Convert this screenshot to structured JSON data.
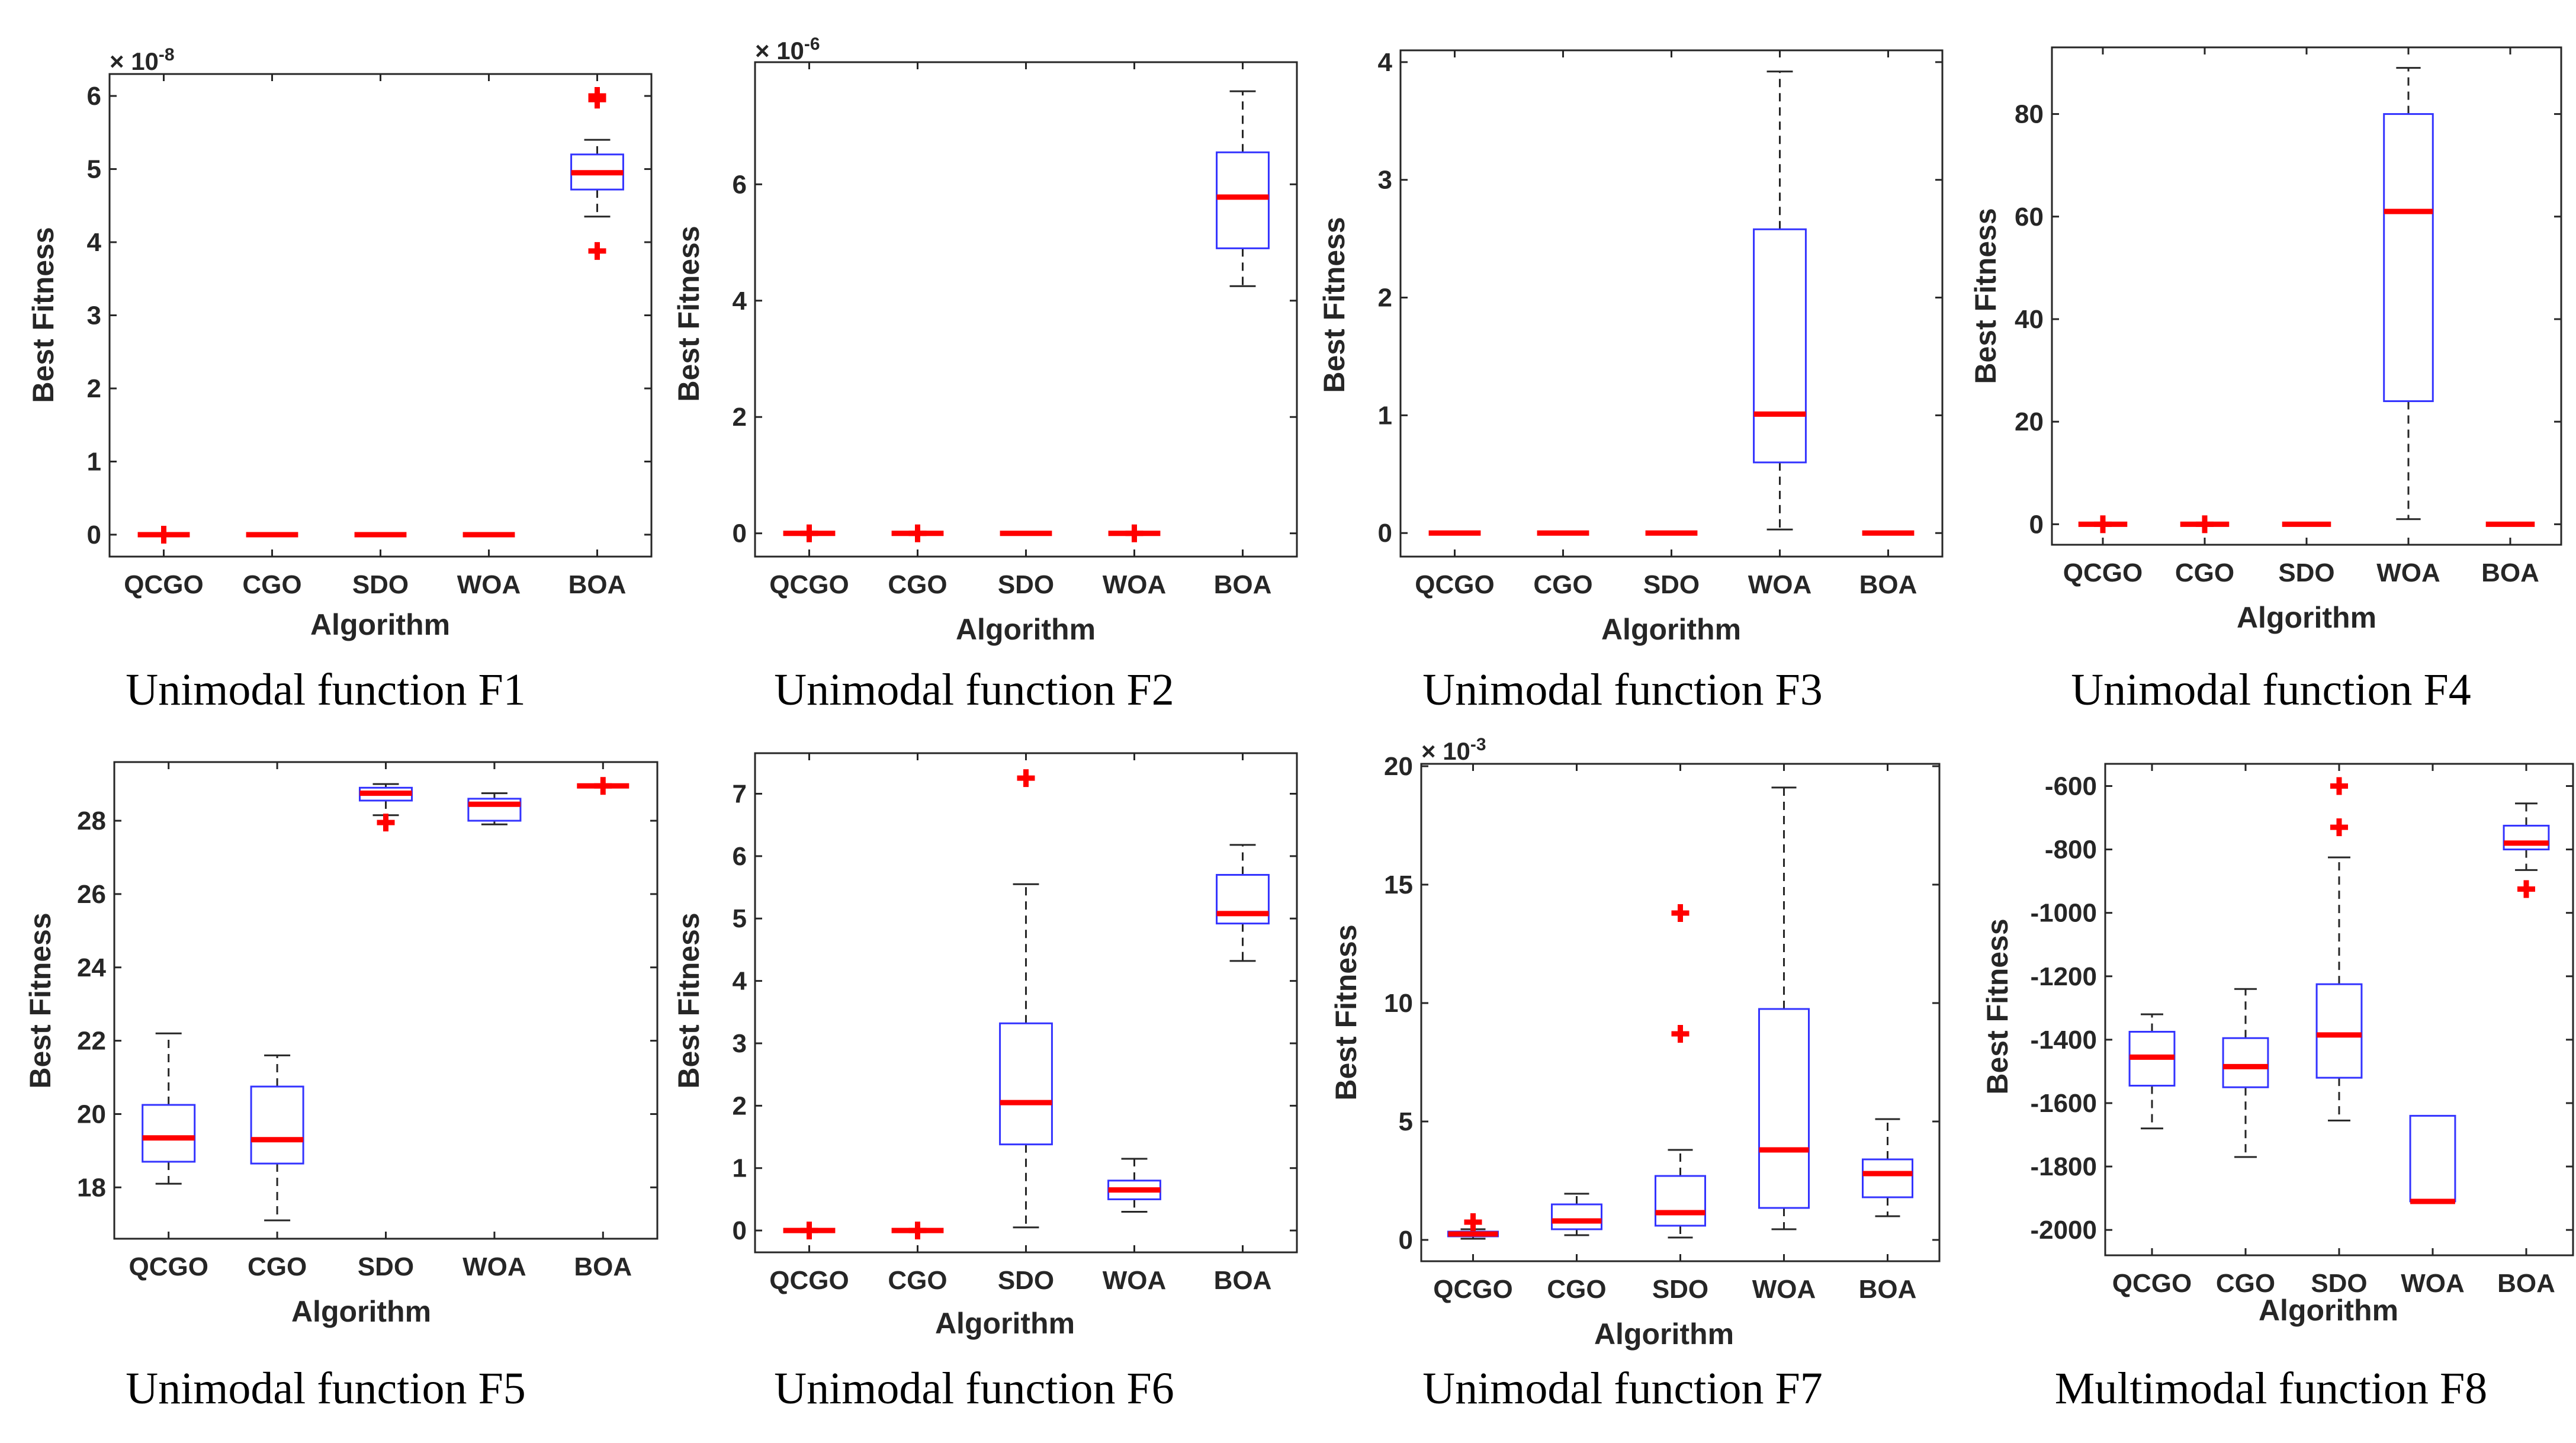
{
  "style": {
    "box_color": "#3333ff",
    "median_color": "#ff0000",
    "outlier_color": "#ff0000",
    "whisker_color": "#262626",
    "axes_color": "#262626"
  },
  "chart_data": [
    {
      "type": "box",
      "caption": "Unimodal function F1",
      "xlabel": "Algorithm",
      "ylabel": "Best Fitness",
      "categories": [
        "QCGO",
        "CGO",
        "SDO",
        "WOA",
        "BOA"
      ],
      "multiplier_base": "× 10",
      "multiplier_exp": "-8",
      "ylim": [
        -0.3,
        6.3
      ],
      "yticks": [
        0,
        1,
        2,
        3,
        4,
        5,
        6
      ],
      "ytick_labels": [
        "0",
        "1",
        "2",
        "3",
        "4",
        "5",
        "6"
      ],
      "boxes": [
        {
          "lw": 0,
          "q1": 0,
          "med": 0,
          "q3": 0,
          "uw": 0,
          "outliers": [
            0
          ]
        },
        {
          "lw": 0,
          "q1": 0,
          "med": 0,
          "q3": 0,
          "uw": 0,
          "outliers": []
        },
        {
          "lw": 0,
          "q1": 0,
          "med": 0,
          "q3": 0,
          "uw": 0,
          "outliers": []
        },
        {
          "lw": 0,
          "q1": 0,
          "med": 0,
          "q3": 0,
          "uw": 0,
          "outliers": []
        },
        {
          "lw": 4.35,
          "q1": 4.72,
          "med": 4.95,
          "q3": 5.2,
          "uw": 5.4,
          "outliers": [
            3.88,
            5.95,
            6.0
          ]
        }
      ]
    },
    {
      "type": "box",
      "caption": "Unimodal function F2",
      "xlabel": "Algorithm",
      "ylabel": "Best Fitness",
      "categories": [
        "QCGO",
        "CGO",
        "SDO",
        "WOA",
        "BOA"
      ],
      "multiplier_base": "× 10",
      "multiplier_exp": "-6",
      "ylim": [
        -0.4,
        8.1
      ],
      "yticks": [
        0,
        2,
        4,
        6
      ],
      "ytick_labels": [
        "0",
        "2",
        "4",
        "6"
      ],
      "boxes": [
        {
          "lw": 0,
          "q1": 0,
          "med": 0,
          "q3": 0,
          "uw": 0,
          "outliers": [
            0
          ]
        },
        {
          "lw": 0,
          "q1": 0,
          "med": 0,
          "q3": 0,
          "uw": 0,
          "outliers": [
            0
          ]
        },
        {
          "lw": 0,
          "q1": 0,
          "med": 0,
          "q3": 0,
          "uw": 0,
          "outliers": []
        },
        {
          "lw": 0,
          "q1": 0,
          "med": 0,
          "q3": 0,
          "uw": 0,
          "outliers": [
            0
          ]
        },
        {
          "lw": 4.25,
          "q1": 4.9,
          "med": 5.78,
          "q3": 6.55,
          "uw": 7.6,
          "outliers": []
        }
      ]
    },
    {
      "type": "box",
      "caption": "Unimodal function F3",
      "xlabel": "Algorithm",
      "ylabel": "Best Fitness",
      "categories": [
        "QCGO",
        "CGO",
        "SDO",
        "WOA",
        "BOA"
      ],
      "multiplier_base": "",
      "multiplier_exp": "",
      "ylim": [
        -0.2,
        4.1
      ],
      "yticks": [
        0,
        1,
        2,
        3,
        4
      ],
      "ytick_labels": [
        "0",
        "1",
        "2",
        "3",
        "4"
      ],
      "boxes": [
        {
          "lw": 0,
          "q1": 0,
          "med": 0,
          "q3": 0,
          "uw": 0,
          "outliers": []
        },
        {
          "lw": 0,
          "q1": 0,
          "med": 0,
          "q3": 0,
          "uw": 0,
          "outliers": []
        },
        {
          "lw": 0,
          "q1": 0,
          "med": 0,
          "q3": 0,
          "uw": 0,
          "outliers": []
        },
        {
          "lw": 0.03,
          "q1": 0.6,
          "med": 1.01,
          "q3": 2.58,
          "uw": 3.92,
          "outliers": []
        },
        {
          "lw": 0,
          "q1": 0,
          "med": 0,
          "q3": 0,
          "uw": 0,
          "outliers": []
        }
      ]
    },
    {
      "type": "box",
      "caption": "Unimodal function F4",
      "xlabel": "Algorithm",
      "ylabel": "Best Fitness",
      "categories": [
        "QCGO",
        "CGO",
        "SDO",
        "WOA",
        "BOA"
      ],
      "multiplier_base": "",
      "multiplier_exp": "",
      "ylim": [
        -4,
        93
      ],
      "yticks": [
        0,
        20,
        40,
        60,
        80
      ],
      "ytick_labels": [
        "0",
        "20",
        "40",
        "60",
        "80"
      ],
      "boxes": [
        {
          "lw": 0,
          "q1": 0,
          "med": 0,
          "q3": 0,
          "uw": 0,
          "outliers": [
            0
          ]
        },
        {
          "lw": 0,
          "q1": 0,
          "med": 0,
          "q3": 0,
          "uw": 0,
          "outliers": [
            0
          ]
        },
        {
          "lw": 0,
          "q1": 0,
          "med": 0,
          "q3": 0,
          "uw": 0,
          "outliers": []
        },
        {
          "lw": 1,
          "q1": 24,
          "med": 61,
          "q3": 80,
          "uw": 89,
          "outliers": []
        },
        {
          "lw": 0,
          "q1": 0,
          "med": 0,
          "q3": 0,
          "uw": 0,
          "outliers": []
        }
      ]
    },
    {
      "type": "box",
      "caption": "Unimodal function F5",
      "xlabel": "Algorithm",
      "ylabel": "Best Fitness",
      "categories": [
        "QCGO",
        "CGO",
        "SDO",
        "WOA",
        "BOA"
      ],
      "multiplier_base": "",
      "multiplier_exp": "",
      "ylim": [
        16.6,
        29.6
      ],
      "yticks": [
        18,
        20,
        22,
        24,
        26,
        28
      ],
      "ytick_labels": [
        "18",
        "20",
        "22",
        "24",
        "26",
        "28"
      ],
      "boxes": [
        {
          "lw": 18.1,
          "q1": 18.7,
          "med": 19.35,
          "q3": 20.25,
          "uw": 22.2,
          "outliers": []
        },
        {
          "lw": 17.1,
          "q1": 18.65,
          "med": 19.3,
          "q3": 20.75,
          "uw": 21.6,
          "outliers": []
        },
        {
          "lw": 28.15,
          "q1": 28.55,
          "med": 28.75,
          "q3": 28.9,
          "uw": 29.0,
          "outliers": [
            27.95
          ]
        },
        {
          "lw": 27.9,
          "q1": 28.0,
          "med": 28.45,
          "q3": 28.6,
          "uw": 28.75,
          "outliers": []
        },
        {
          "lw": 28.95,
          "q1": 28.95,
          "med": 28.95,
          "q3": 28.95,
          "uw": 28.95,
          "outliers": [
            28.95
          ]
        }
      ]
    },
    {
      "type": "box",
      "caption": "Unimodal function F6",
      "xlabel": "Algorithm",
      "ylabel": "Best Fitness",
      "categories": [
        "QCGO",
        "CGO",
        "SDO",
        "WOA",
        "BOA"
      ],
      "multiplier_base": "",
      "multiplier_exp": "",
      "ylim": [
        -0.35,
        7.65
      ],
      "yticks": [
        0,
        1,
        2,
        3,
        4,
        5,
        6,
        7
      ],
      "ytick_labels": [
        "0",
        "1",
        "2",
        "3",
        "4",
        "5",
        "6",
        "7"
      ],
      "boxes": [
        {
          "lw": 0,
          "q1": 0,
          "med": 0,
          "q3": 0,
          "uw": 0,
          "outliers": [
            0
          ]
        },
        {
          "lw": 0,
          "q1": 0,
          "med": 0,
          "q3": 0,
          "uw": 0,
          "outliers": [
            0
          ]
        },
        {
          "lw": 0.05,
          "q1": 1.38,
          "med": 2.05,
          "q3": 3.32,
          "uw": 5.55,
          "outliers": [
            7.25
          ]
        },
        {
          "lw": 0.3,
          "q1": 0.5,
          "med": 0.65,
          "q3": 0.8,
          "uw": 1.15,
          "outliers": []
        },
        {
          "lw": 4.32,
          "q1": 4.92,
          "med": 5.08,
          "q3": 5.7,
          "uw": 6.18,
          "outliers": []
        }
      ]
    },
    {
      "type": "box",
      "caption": "Unimodal function F7",
      "xlabel": "Algorithm",
      "ylabel": "Best Fitness",
      "categories": [
        "QCGO",
        "CGO",
        "SDO",
        "WOA",
        "BOA"
      ],
      "multiplier_base": "× 10",
      "multiplier_exp": "-3",
      "ylim": [
        -0.9,
        20.1
      ],
      "yticks": [
        0,
        5,
        10,
        15,
        20
      ],
      "ytick_labels": [
        "0",
        "5",
        "10",
        "15",
        "20"
      ],
      "boxes": [
        {
          "lw": 0.05,
          "q1": 0.15,
          "med": 0.25,
          "q3": 0.35,
          "uw": 0.45,
          "outliers": [
            0.75
          ]
        },
        {
          "lw": 0.2,
          "q1": 0.45,
          "med": 0.8,
          "q3": 1.5,
          "uw": 1.95,
          "outliers": []
        },
        {
          "lw": 0.1,
          "q1": 0.6,
          "med": 1.15,
          "q3": 2.7,
          "uw": 3.8,
          "outliers": [
            8.7,
            13.8
          ]
        },
        {
          "lw": 0.45,
          "q1": 1.35,
          "med": 3.8,
          "q3": 9.75,
          "uw": 19.1,
          "outliers": []
        },
        {
          "lw": 1.0,
          "q1": 1.8,
          "med": 2.8,
          "q3": 3.4,
          "uw": 5.1,
          "outliers": []
        }
      ]
    },
    {
      "type": "box",
      "caption": "Multimodal function F8",
      "xlabel": "Algorithm",
      "ylabel": "Best Fitness",
      "categories": [
        "QCGO",
        "CGO",
        "SDO",
        "WOA",
        "BOA"
      ],
      "multiplier_base": "",
      "multiplier_exp": "",
      "ylim": [
        -2080,
        -530
      ],
      "yticks": [
        -2000,
        -1800,
        -1600,
        -1400,
        -1200,
        -1000,
        -800,
        -600
      ],
      "ytick_labels": [
        "-2000",
        "-1800",
        "-1600",
        "-1400",
        "-1200",
        "-1000",
        "-800",
        "-600"
      ],
      "boxes": [
        {
          "lw": -1680,
          "q1": -1545,
          "med": -1455,
          "q3": -1375,
          "uw": -1320,
          "outliers": []
        },
        {
          "lw": -1770,
          "q1": -1550,
          "med": -1485,
          "q3": -1395,
          "uw": -1240,
          "outliers": []
        },
        {
          "lw": -1655,
          "q1": -1520,
          "med": -1385,
          "q3": -1225,
          "uw": -825,
          "outliers": [
            -730,
            -600
          ]
        },
        {
          "lw": -1910,
          "q1": -1910,
          "med": -1910,
          "q3": -1640,
          "uw": -1640,
          "outliers": []
        },
        {
          "lw": -865,
          "q1": -800,
          "med": -780,
          "q3": -725,
          "uw": -655,
          "outliers": [
            -925
          ]
        }
      ]
    }
  ]
}
